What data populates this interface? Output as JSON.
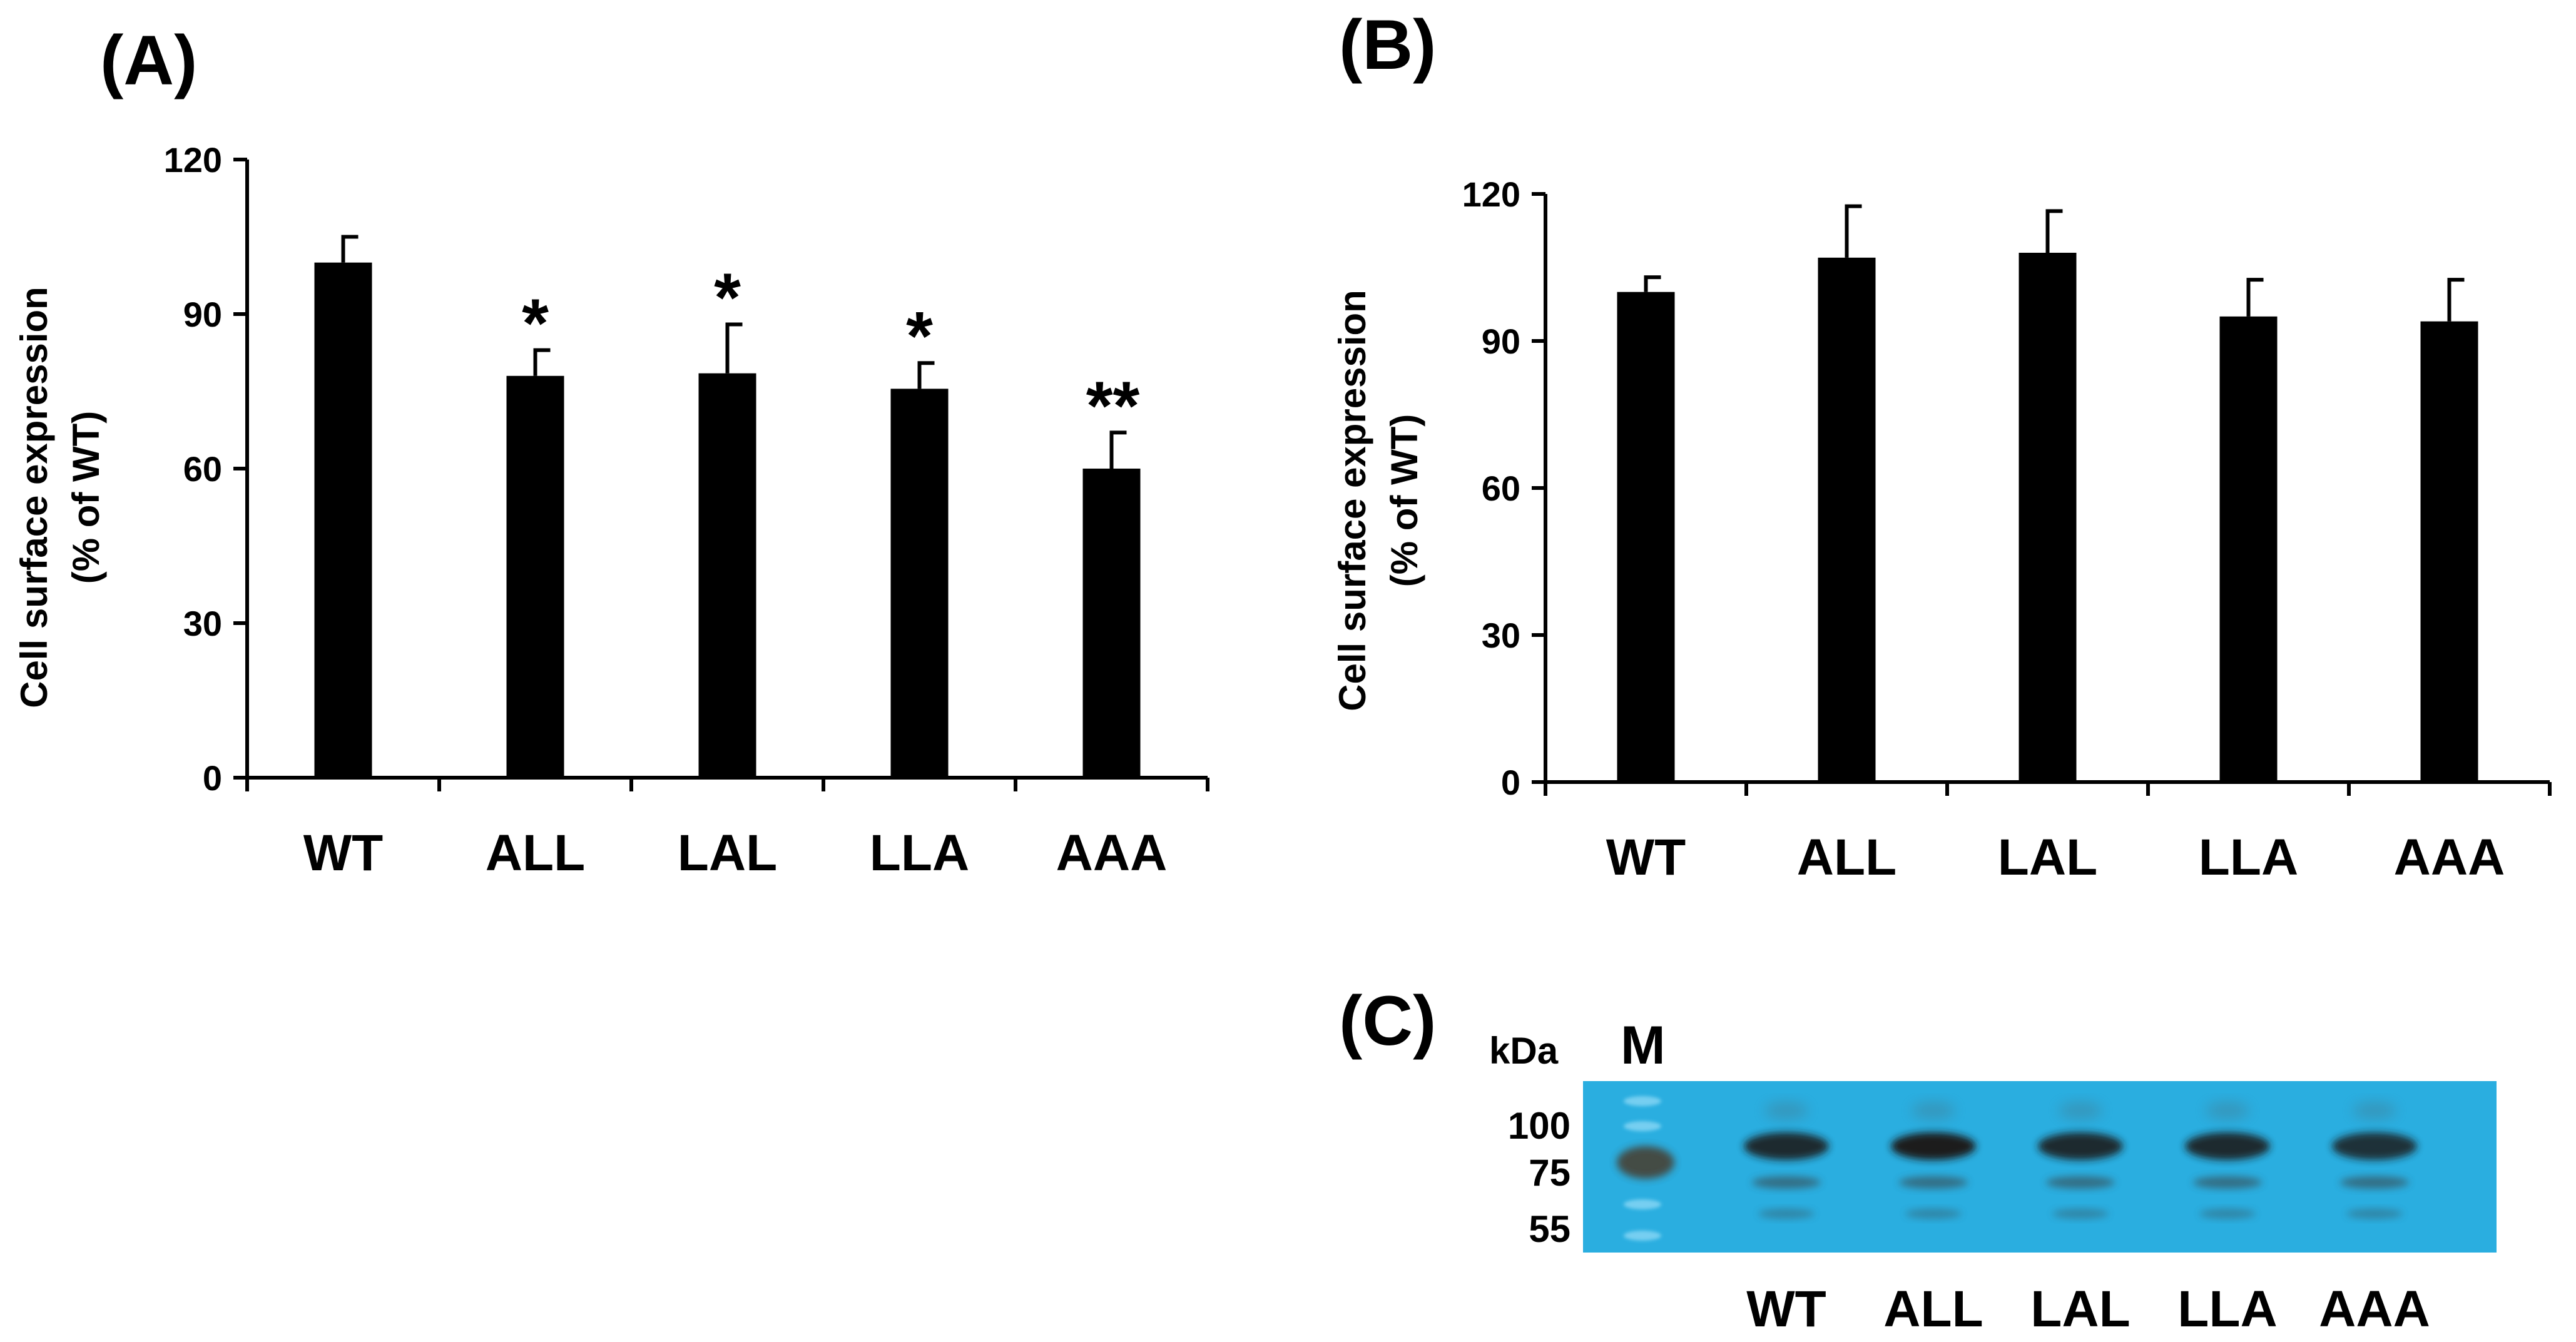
{
  "chart_data": [
    {
      "panel": "(A)",
      "type": "bar",
      "categories": [
        "WT",
        "ALL",
        "LAL",
        "LLA",
        "AAA"
      ],
      "values": [
        100,
        78,
        78.5,
        75.5,
        60
      ],
      "errors": [
        5,
        5,
        9.5,
        5,
        7
      ],
      "significance": [
        "",
        "*",
        "*",
        "*",
        "**"
      ],
      "ylabel_line1": "Cell surface expression",
      "ylabel_line2": "(% of WT)",
      "ylim": [
        0,
        120
      ],
      "yticks": [
        "0",
        "30",
        "60",
        "90",
        "120"
      ],
      "bar_color": "#000000",
      "grid": false
    },
    {
      "panel": "(B)",
      "type": "bar",
      "categories": [
        "WT",
        "ALL",
        "LAL",
        "LLA",
        "AAA"
      ],
      "values": [
        100,
        107,
        108,
        95,
        94
      ],
      "errors": [
        3,
        10.5,
        8.5,
        7.5,
        8.5
      ],
      "significance": [
        "",
        "",
        "",
        "",
        ""
      ],
      "ylabel_line1": "Cell surface expression",
      "ylabel_line2": "(% of WT)",
      "ylim": [
        0,
        120
      ],
      "yticks": [
        "0",
        "30",
        "60",
        "90",
        "120"
      ],
      "bar_color": "#000000",
      "grid": false
    }
  ],
  "blot": {
    "panel": "(C)",
    "unit": "kDa",
    "marker": "M",
    "marker_sizes": [
      "100",
      "75",
      "55"
    ],
    "lanes": [
      "WT",
      "ALL",
      "LAL",
      "LLA",
      "AAA"
    ],
    "background_color": "#2aaee0"
  }
}
